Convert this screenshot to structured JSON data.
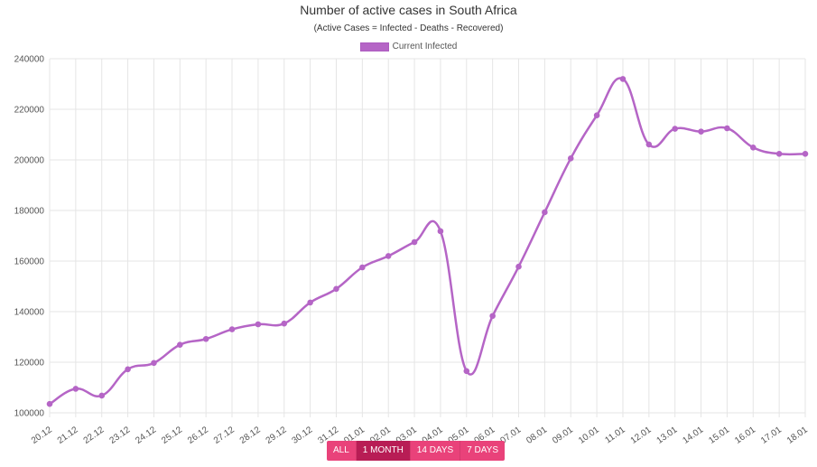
{
  "header": {
    "title": "Number of active cases in South Africa",
    "subtitle": "(Active Cases = Infected - Deaths - Recovered)"
  },
  "colors": {
    "series": "#b565c6",
    "grid": "#e5e5e5",
    "button": "#e9427a",
    "button_active": "#b81d55"
  },
  "chart_data": {
    "type": "line",
    "title": "Number of active cases in South Africa",
    "subtitle": "(Active Cases = Infected - Deaths - Recovered)",
    "xlabel": "",
    "ylabel": "",
    "ylim": [
      100000,
      240000
    ],
    "yticks": [
      "240000",
      "220000",
      "200000",
      "180000",
      "160000",
      "140000",
      "120000",
      "100000"
    ],
    "grid": true,
    "legend_position": "top-center",
    "categories": [
      "20.12",
      "21.12",
      "22.12",
      "23.12",
      "24.12",
      "25.12",
      "26.12",
      "27.12",
      "28.12",
      "29.12",
      "30.12",
      "31.12",
      "01.01",
      "02.01",
      "03.01",
      "04.01",
      "05.01",
      "06.01",
      "07.01",
      "08.01",
      "09.01",
      "10.01",
      "11.01",
      "12.01",
      "13.01",
      "14.01",
      "15.01",
      "16.01",
      "17.01",
      "18.01"
    ],
    "series": [
      {
        "name": "Current Infected",
        "values": [
          103500,
          109500,
          106800,
          117200,
          119700,
          126900,
          129200,
          133000,
          135000,
          135300,
          143600,
          149000,
          157500,
          162000,
          167500,
          171800,
          116500,
          138300,
          157800,
          179300,
          200600,
          217600,
          232000,
          206100,
          212300,
          211200,
          212500,
          204900,
          202400,
          202400
        ]
      }
    ]
  },
  "range_buttons": [
    {
      "label": "ALL",
      "active": false
    },
    {
      "label": "1 MONTH",
      "active": true
    },
    {
      "label": "14 DAYS",
      "active": false
    },
    {
      "label": "7 DAYS",
      "active": false
    }
  ]
}
